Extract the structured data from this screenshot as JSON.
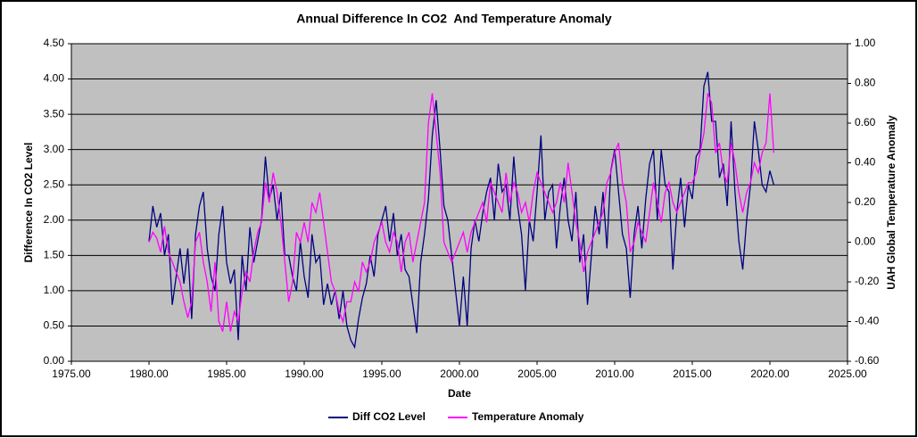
{
  "chart_data": {
    "type": "line",
    "title": "Annual Difference In CO2  And Temperature Anomaly",
    "x_label": "Date",
    "y_label": "Difference In CO2 Level",
    "y2_label": "UAH Global Temperature Anomaly",
    "x": [
      1980,
      1980.25,
      1980.5,
      1980.75,
      1981,
      1981.25,
      1981.5,
      1981.75,
      1982,
      1982.25,
      1982.5,
      1982.75,
      1983,
      1983.25,
      1983.5,
      1983.75,
      1984,
      1984.25,
      1984.5,
      1984.75,
      1985,
      1985.25,
      1985.5,
      1985.75,
      1986,
      1986.25,
      1986.5,
      1986.75,
      1987,
      1987.25,
      1987.5,
      1987.75,
      1988,
      1988.25,
      1988.5,
      1988.75,
      1989,
      1989.25,
      1989.5,
      1989.75,
      1990,
      1990.25,
      1990.5,
      1990.75,
      1991,
      1991.25,
      1991.5,
      1991.75,
      1992,
      1992.25,
      1992.5,
      1992.75,
      1993,
      1993.25,
      1993.5,
      1993.75,
      1994,
      1994.25,
      1994.5,
      1994.75,
      1995,
      1995.25,
      1995.5,
      1995.75,
      1996,
      1996.25,
      1996.5,
      1996.75,
      1997,
      1997.25,
      1997.5,
      1997.75,
      1998,
      1998.25,
      1998.5,
      1998.75,
      1999,
      1999.25,
      1999.5,
      1999.75,
      2000,
      2000.25,
      2000.5,
      2000.75,
      2001,
      2001.25,
      2001.5,
      2001.75,
      2002,
      2002.25,
      2002.5,
      2002.75,
      2003,
      2003.25,
      2003.5,
      2003.75,
      2004,
      2004.25,
      2004.5,
      2004.75,
      2005,
      2005.25,
      2005.5,
      2005.75,
      2006,
      2006.25,
      2006.5,
      2006.75,
      2007,
      2007.25,
      2007.5,
      2007.75,
      2008,
      2008.25,
      2008.5,
      2008.75,
      2009,
      2009.25,
      2009.5,
      2009.75,
      2010,
      2010.25,
      2010.5,
      2010.75,
      2011,
      2011.25,
      2011.5,
      2011.75,
      2012,
      2012.25,
      2012.5,
      2012.75,
      2013,
      2013.25,
      2013.5,
      2013.75,
      2014,
      2014.25,
      2014.5,
      2014.75,
      2015,
      2015.25,
      2015.5,
      2015.75,
      2016,
      2016.25,
      2016.5,
      2016.75,
      2017,
      2017.25,
      2017.5,
      2017.75,
      2018,
      2018.25,
      2018.5,
      2018.75,
      2019,
      2019.25,
      2019.5,
      2019.75,
      2020,
      2020.25
    ],
    "series": [
      {
        "name": "Diff CO2 Level",
        "color": "#000080",
        "axis": "y",
        "values": [
          1.7,
          2.2,
          1.9,
          2.1,
          1.5,
          1.8,
          0.8,
          1.2,
          1.6,
          1.1,
          1.6,
          0.6,
          1.8,
          2.2,
          2.4,
          1.6,
          1.2,
          1.0,
          1.8,
          2.2,
          1.4,
          1.1,
          1.3,
          0.3,
          1.5,
          1.0,
          1.9,
          1.4,
          1.7,
          2.0,
          2.9,
          2.3,
          2.5,
          2.0,
          2.4,
          1.5,
          1.5,
          1.2,
          1.0,
          1.7,
          1.2,
          0.9,
          1.8,
          1.4,
          1.5,
          0.8,
          1.1,
          0.8,
          1.0,
          0.6,
          1.0,
          0.5,
          0.3,
          0.2,
          0.6,
          0.9,
          1.1,
          1.5,
          1.2,
          1.8,
          2.0,
          2.2,
          1.7,
          2.1,
          1.5,
          1.8,
          1.3,
          1.2,
          0.8,
          0.4,
          1.4,
          1.8,
          2.3,
          3.2,
          3.7,
          3.0,
          2.2,
          2.0,
          1.5,
          1.0,
          0.5,
          1.2,
          0.5,
          1.6,
          2.0,
          1.7,
          2.1,
          2.4,
          2.6,
          2.0,
          2.8,
          2.4,
          2.5,
          2.0,
          2.9,
          2.2,
          1.8,
          1.0,
          2.0,
          1.7,
          2.4,
          3.2,
          2.0,
          2.4,
          2.5,
          1.6,
          2.2,
          2.6,
          2.0,
          1.7,
          2.4,
          1.4,
          1.8,
          0.8,
          1.5,
          2.2,
          1.8,
          2.4,
          1.6,
          2.7,
          3.0,
          2.4,
          1.8,
          1.6,
          0.9,
          1.8,
          2.2,
          1.6,
          2.3,
          2.8,
          3.0,
          2.0,
          3.0,
          2.5,
          2.4,
          1.3,
          2.1,
          2.6,
          1.9,
          2.5,
          2.3,
          2.9,
          3.0,
          3.9,
          4.1,
          3.4,
          3.4,
          2.6,
          2.8,
          2.2,
          3.4,
          2.4,
          1.7,
          1.3,
          2.0,
          2.5,
          3.4,
          3.0,
          2.5,
          2.4,
          2.7,
          2.5
        ]
      },
      {
        "name": "Temperature Anomaly",
        "color": "#ff00ff",
        "axis": "y2",
        "values": [
          0.0,
          0.05,
          0.02,
          -0.05,
          0.08,
          -0.05,
          -0.1,
          -0.15,
          -0.2,
          -0.3,
          -0.38,
          -0.3,
          0.0,
          0.05,
          -0.1,
          -0.2,
          -0.35,
          -0.1,
          -0.4,
          -0.45,
          -0.3,
          -0.45,
          -0.35,
          -0.4,
          -0.25,
          -0.15,
          -0.2,
          -0.05,
          0.05,
          0.1,
          0.3,
          0.2,
          0.35,
          0.25,
          0.1,
          -0.1,
          -0.3,
          -0.2,
          0.05,
          0.0,
          0.1,
          0.0,
          0.2,
          0.15,
          0.25,
          0.1,
          -0.05,
          -0.2,
          -0.25,
          -0.35,
          -0.4,
          -0.3,
          -0.3,
          -0.2,
          -0.25,
          -0.1,
          -0.15,
          -0.1,
          0.0,
          0.05,
          0.1,
          0.0,
          -0.05,
          0.05,
          0.0,
          -0.15,
          0.0,
          0.05,
          -0.1,
          0.0,
          0.1,
          0.2,
          0.6,
          0.75,
          0.55,
          0.35,
          0.0,
          -0.05,
          -0.1,
          -0.05,
          0.0,
          0.05,
          -0.05,
          0.05,
          0.1,
          0.15,
          0.2,
          0.1,
          0.3,
          0.25,
          0.2,
          0.15,
          0.35,
          0.2,
          0.3,
          0.25,
          0.15,
          0.2,
          0.1,
          0.25,
          0.35,
          0.3,
          0.25,
          0.2,
          0.15,
          0.2,
          0.3,
          0.2,
          0.4,
          0.25,
          0.1,
          0.0,
          -0.15,
          -0.05,
          0.0,
          0.05,
          0.1,
          0.15,
          0.3,
          0.35,
          0.45,
          0.5,
          0.3,
          0.2,
          -0.05,
          0.0,
          0.1,
          0.05,
          0.0,
          0.15,
          0.3,
          0.2,
          0.1,
          0.25,
          0.3,
          0.2,
          0.15,
          0.2,
          0.25,
          0.3,
          0.3,
          0.35,
          0.45,
          0.55,
          0.75,
          0.7,
          0.45,
          0.5,
          0.35,
          0.3,
          0.5,
          0.4,
          0.25,
          0.15,
          0.25,
          0.3,
          0.4,
          0.35,
          0.45,
          0.5,
          0.75,
          0.45
        ]
      }
    ],
    "xlim": [
      1975,
      2025
    ],
    "xticks": [
      {
        "value": 1975,
        "label": "1975.00"
      },
      {
        "value": 1980,
        "label": "1980.00"
      },
      {
        "value": 1985,
        "label": "1985.00"
      },
      {
        "value": 1990,
        "label": "1990.00"
      },
      {
        "value": 1995,
        "label": "1995.00"
      },
      {
        "value": 2000,
        "label": "2000.00"
      },
      {
        "value": 2005,
        "label": "2005.00"
      },
      {
        "value": 2010,
        "label": "2010.00"
      },
      {
        "value": 2015,
        "label": "2015.00"
      },
      {
        "value": 2020,
        "label": "2020.00"
      },
      {
        "value": 2025,
        "label": "2025.00"
      }
    ],
    "ylim": [
      0,
      4.5
    ],
    "yticks": [
      {
        "value": 0,
        "label": "0.00"
      },
      {
        "value": 0.5,
        "label": "0.50"
      },
      {
        "value": 1,
        "label": "1.00"
      },
      {
        "value": 1.5,
        "label": "1.50"
      },
      {
        "value": 2,
        "label": "2.00"
      },
      {
        "value": 2.5,
        "label": "2.50"
      },
      {
        "value": 3,
        "label": "3.00"
      },
      {
        "value": 3.5,
        "label": "3.50"
      },
      {
        "value": 4,
        "label": "4.00"
      },
      {
        "value": 4.5,
        "label": "4.50"
      }
    ],
    "y2lim": [
      -0.6,
      1.0
    ],
    "y2ticks": [
      {
        "value": -0.6,
        "label": "-0.60"
      },
      {
        "value": -0.4,
        "label": "-0.40"
      },
      {
        "value": -0.2,
        "label": "-0.20"
      },
      {
        "value": 0,
        "label": "0.00"
      },
      {
        "value": 0.2,
        "label": "0.20"
      },
      {
        "value": 0.4,
        "label": "0.40"
      },
      {
        "value": 0.6,
        "label": "0.60"
      },
      {
        "value": 0.8,
        "label": "0.80"
      },
      {
        "value": 1.0,
        "label": "1.00"
      }
    ],
    "grid": true,
    "legend": "bottom"
  }
}
